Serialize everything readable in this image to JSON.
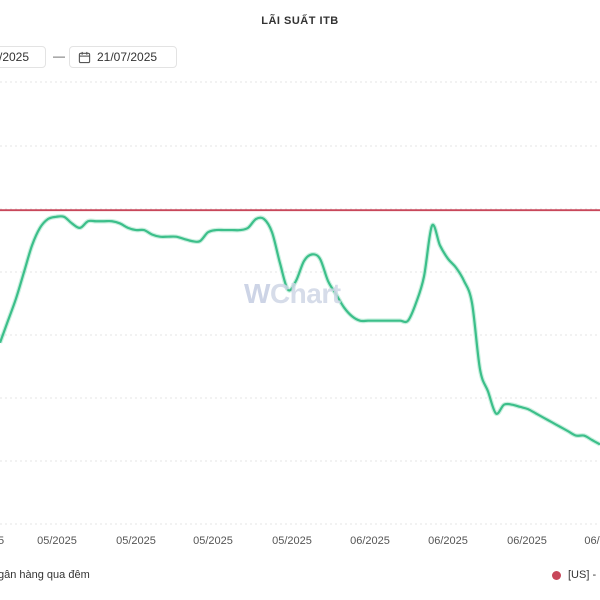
{
  "title": "LÃI SUẤT ITB",
  "date_range": {
    "from": "/2025",
    "separator": "—",
    "to": "21/07/2025"
  },
  "watermark": {
    "w": "W",
    "rest": "Chart"
  },
  "colors": {
    "green": "#3cbf8a",
    "red": "#c8475a",
    "grid": "#e6e6e6",
    "tick_text": "#555555"
  },
  "icons": {
    "calendar": "calendar-icon"
  },
  "chart_data": {
    "type": "line",
    "title": "LÃI SUẤT ITB",
    "x_tick_labels": [
      "5",
      "05/2025",
      "05/2025",
      "05/2025",
      "05/2025",
      "06/2025",
      "06/2025",
      "06/2025",
      "06/"
    ],
    "grid": true,
    "legend_position": "bottom",
    "series": [
      {
        "name": "gân hàng qua đêm",
        "color": "#3cbf8a",
        "x": [
          0,
          8,
          16,
          24,
          32,
          40,
          48,
          56,
          64,
          72,
          80,
          88,
          96,
          104,
          112,
          120,
          128,
          136,
          144,
          152,
          160,
          168,
          176,
          184,
          192,
          200,
          208,
          216,
          224,
          232,
          240,
          248,
          256,
          264,
          272,
          280,
          288,
          296,
          304,
          312,
          320,
          328,
          336,
          344,
          352,
          360,
          368,
          376,
          384,
          392,
          400,
          408,
          416,
          424,
          432,
          440,
          448,
          456,
          464,
          472,
          480,
          488,
          496,
          504,
          512,
          520,
          528,
          536,
          544,
          552,
          560,
          568,
          576,
          584,
          592,
          600
        ],
        "y": [
          4.1,
          4.6,
          5.1,
          5.7,
          6.3,
          6.7,
          6.9,
          6.95,
          6.95,
          6.8,
          6.7,
          6.85,
          6.85,
          6.85,
          6.85,
          6.8,
          6.7,
          6.65,
          6.65,
          6.55,
          6.5,
          6.5,
          6.5,
          6.45,
          6.4,
          6.4,
          6.6,
          6.65,
          6.65,
          6.65,
          6.65,
          6.7,
          6.9,
          6.9,
          6.6,
          5.9,
          5.3,
          5.5,
          5.95,
          6.1,
          6.0,
          5.5,
          5.2,
          4.9,
          4.7,
          4.6,
          4.6,
          4.6,
          4.6,
          4.6,
          4.6,
          4.6,
          5.0,
          5.6,
          6.75,
          6.3,
          6.0,
          5.8,
          5.5,
          5.0,
          3.5,
          3.0,
          2.5,
          2.7,
          2.7,
          2.65,
          2.6,
          2.5,
          2.4,
          2.3,
          2.2,
          2.1,
          2.0,
          2.0,
          1.9,
          1.8
        ]
      },
      {
        "name": "[US] -",
        "color": "#c8475a",
        "x": [
          0,
          600
        ],
        "y": [
          7.1,
          7.1
        ]
      }
    ]
  },
  "legend": {
    "left_label": "gân hàng qua đêm",
    "right_label": "[US] -"
  }
}
